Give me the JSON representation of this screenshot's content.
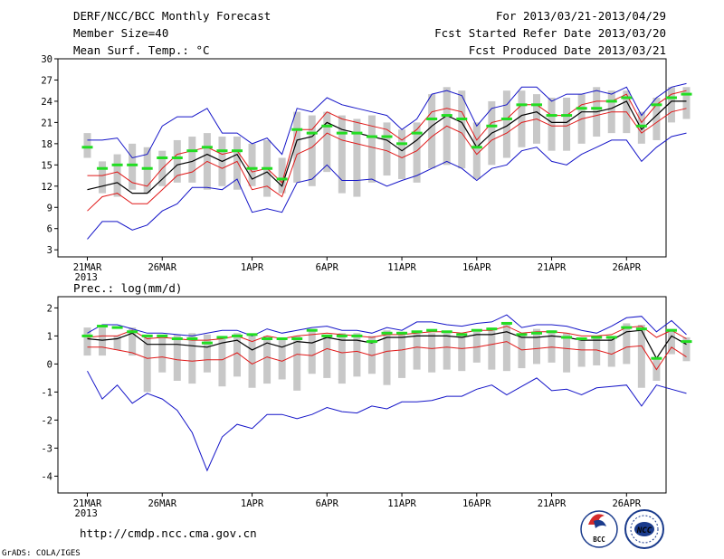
{
  "header": {
    "title": "DERF/NCC/BCC Monthly Forecast",
    "member_size": "Member Size=40",
    "variable": "Mean Surf. Temp.: °C",
    "period": "For 2013/03/21-2013/04/29",
    "started": "Fcst Started Refer Date 2013/03/20",
    "produced": "Fcst Produced Date 2013/03/21"
  },
  "footer": {
    "url": "http://cmdp.ncc.cma.gov.cn",
    "credit": "GrADS: COLA/IGES",
    "logo_left": "BCC",
    "logo_right": "NCC"
  },
  "legend_colors": {
    "max": "#1414c8",
    "min": "#1414c8",
    "upper": "#e01818",
    "lower": "#e01818",
    "mean": "#000000",
    "obs": "#22dd22",
    "spread": "#c8c8c8"
  },
  "chart_data": [
    {
      "type": "line",
      "name": "temp",
      "ylabel": "Mean Surf. Temp.: °C",
      "ylim": [
        2,
        30
      ],
      "yticks": [
        3,
        6,
        9,
        12,
        15,
        18,
        21,
        24,
        27,
        30
      ],
      "xticks": [
        {
          "day": 0,
          "label": "21MAR",
          "sub": "2013"
        },
        {
          "day": 5,
          "label": "26MAR"
        },
        {
          "day": 11,
          "label": "1APR"
        },
        {
          "day": 16,
          "label": "6APR"
        },
        {
          "day": 21,
          "label": "11APR"
        },
        {
          "day": 26,
          "label": "16APR"
        },
        {
          "day": 31,
          "label": "21APR"
        },
        {
          "day": 36,
          "label": "26APR"
        }
      ],
      "max": [
        18.5,
        18.5,
        18.8,
        16.0,
        16.5,
        20.5,
        21.8,
        21.8,
        23.0,
        19.5,
        19.5,
        18.0,
        18.8,
        16.5,
        23.0,
        22.5,
        24.5,
        23.5,
        23.0,
        22.5,
        22.0,
        20.0,
        21.5,
        25.0,
        25.5,
        24.8,
        20.5,
        23.0,
        23.5,
        26.0,
        26.0,
        24.0,
        25.0,
        25.0,
        25.5,
        25.0,
        26.0,
        22.0,
        24.5,
        26.0,
        26.5
      ],
      "upper": [
        13.5,
        13.5,
        14.0,
        12.5,
        12.0,
        14.5,
        16.5,
        17.0,
        17.5,
        16.5,
        17.0,
        14.0,
        14.5,
        12.5,
        20.0,
        20.0,
        22.5,
        21.5,
        21.0,
        20.5,
        20.0,
        18.5,
        20.0,
        22.5,
        23.0,
        22.5,
        18.5,
        21.0,
        21.5,
        23.5,
        23.5,
        22.0,
        22.0,
        23.5,
        24.0,
        24.0,
        25.0,
        21.0,
        23.5,
        25.0,
        25.5
      ],
      "mean": [
        11.5,
        12.0,
        12.5,
        11.0,
        11.0,
        13.0,
        15.0,
        15.5,
        16.5,
        15.5,
        16.5,
        13.0,
        14.0,
        12.0,
        18.5,
        19.0,
        21.0,
        20.0,
        19.5,
        19.0,
        18.5,
        17.0,
        18.5,
        20.5,
        22.0,
        21.0,
        17.5,
        19.5,
        20.5,
        22.0,
        22.5,
        21.0,
        21.0,
        22.5,
        22.5,
        23.0,
        24.0,
        20.0,
        22.0,
        24.0,
        24.0
      ],
      "lower": [
        8.5,
        10.5,
        11.0,
        9.5,
        9.5,
        11.5,
        13.5,
        14.0,
        15.5,
        14.5,
        15.5,
        11.5,
        12.0,
        10.5,
        16.5,
        17.5,
        19.5,
        18.5,
        18.0,
        17.5,
        17.0,
        16.0,
        17.0,
        19.0,
        20.5,
        19.5,
        16.5,
        18.5,
        19.5,
        21.0,
        21.5,
        20.5,
        20.5,
        21.5,
        22.0,
        22.5,
        22.5,
        19.5,
        21.0,
        22.5,
        23.0
      ],
      "min": [
        4.5,
        7.0,
        7.0,
        5.8,
        6.5,
        8.5,
        9.5,
        11.8,
        11.8,
        11.5,
        13.0,
        8.3,
        8.8,
        8.3,
        12.5,
        13.0,
        15.0,
        12.8,
        12.8,
        13.0,
        12.0,
        12.8,
        13.5,
        14.5,
        15.5,
        14.5,
        12.8,
        14.5,
        15.0,
        17.0,
        17.5,
        15.5,
        15.0,
        16.5,
        17.5,
        18.5,
        18.5,
        15.5,
        17.5,
        19.0,
        19.5
      ],
      "bar_top": [
        19.5,
        15.5,
        16.5,
        18.0,
        17.5,
        17.0,
        18.5,
        19.0,
        19.5,
        19.0,
        19.0,
        18.0,
        18.5,
        16.0,
        22.5,
        22.0,
        22.5,
        22.0,
        21.5,
        22.0,
        21.0,
        20.0,
        21.0,
        25.0,
        26.0,
        25.5,
        21.0,
        24.0,
        25.5,
        25.5,
        25.0,
        24.5,
        24.5,
        25.0,
        26.0,
        25.5,
        25.5,
        22.5,
        24.5,
        26.0,
        26.0
      ],
      "bar_bottom": [
        16.0,
        11.0,
        10.5,
        11.5,
        11.0,
        12.0,
        12.5,
        12.5,
        11.5,
        12.0,
        11.5,
        12.0,
        10.5,
        11.0,
        12.5,
        12.0,
        14.0,
        11.0,
        10.5,
        12.5,
        13.5,
        13.0,
        12.5,
        14.5,
        15.0,
        14.5,
        13.0,
        15.0,
        16.0,
        17.5,
        18.0,
        17.0,
        17.0,
        18.0,
        19.0,
        19.5,
        19.5,
        18.0,
        18.5,
        21.0,
        21.5
      ],
      "obs": [
        17.5,
        14.5,
        15.0,
        15.0,
        14.5,
        16.0,
        16.0,
        17.0,
        17.5,
        17.0,
        17.0,
        14.5,
        14.5,
        13.0,
        20.0,
        19.5,
        20.5,
        19.5,
        19.5,
        19.0,
        19.0,
        18.0,
        19.5,
        21.5,
        22.0,
        21.5,
        17.5,
        20.5,
        21.5,
        23.5,
        23.5,
        22.0,
        22.0,
        23.0,
        23.0,
        24.0,
        24.5,
        20.5,
        23.5,
        24.5,
        25.0
      ]
    },
    {
      "type": "line",
      "name": "precip",
      "ylabel": "Prec.: log(mm/d)",
      "ylim": [
        -4.6,
        2.4
      ],
      "yticks": [
        -4,
        -3,
        -2,
        -1,
        0,
        1,
        2
      ],
      "xticks": [
        {
          "day": 0,
          "label": "21MAR",
          "sub": "2013"
        },
        {
          "day": 5,
          "label": "26MAR"
        },
        {
          "day": 11,
          "label": "1APR"
        },
        {
          "day": 16,
          "label": "6APR"
        },
        {
          "day": 21,
          "label": "11APR"
        },
        {
          "day": 26,
          "label": "16APR"
        },
        {
          "day": 31,
          "label": "21APR"
        },
        {
          "day": 36,
          "label": "26APR"
        }
      ],
      "max": [
        1.1,
        1.4,
        1.4,
        1.25,
        1.1,
        1.1,
        1.05,
        1.0,
        1.1,
        1.2,
        1.2,
        1.0,
        1.25,
        1.1,
        1.2,
        1.3,
        1.35,
        1.2,
        1.2,
        1.1,
        1.3,
        1.2,
        1.5,
        1.5,
        1.4,
        1.35,
        1.45,
        1.5,
        1.75,
        1.3,
        1.4,
        1.4,
        1.35,
        1.2,
        1.1,
        1.35,
        1.65,
        1.7,
        1.15,
        1.55,
        1.05
      ],
      "upper": [
        0.95,
        1.0,
        1.0,
        1.2,
        0.9,
        0.95,
        0.9,
        0.85,
        0.85,
        0.9,
        1.0,
        0.8,
        1.0,
        0.9,
        1.0,
        1.05,
        1.1,
        1.05,
        1.0,
        0.95,
        1.05,
        1.05,
        1.1,
        1.15,
        1.15,
        1.1,
        1.2,
        1.2,
        1.35,
        1.1,
        1.15,
        1.15,
        1.1,
        1.0,
        1.0,
        1.05,
        1.3,
        1.35,
        0.95,
        1.2,
        0.9
      ],
      "mean": [
        0.9,
        0.85,
        0.9,
        1.1,
        0.7,
        0.7,
        0.7,
        0.65,
        0.6,
        0.75,
        0.85,
        0.5,
        0.75,
        0.6,
        0.8,
        0.75,
        0.95,
        0.85,
        0.85,
        0.75,
        0.95,
        0.95,
        1.0,
        1.0,
        1.0,
        0.95,
        1.05,
        1.05,
        1.15,
        0.95,
        0.95,
        1.0,
        0.95,
        0.85,
        0.85,
        0.85,
        1.15,
        1.2,
        0.2,
        1.0,
        0.7
      ],
      "lower": [
        0.6,
        0.6,
        0.5,
        0.4,
        0.2,
        0.25,
        0.15,
        0.1,
        0.15,
        0.15,
        0.4,
        0.0,
        0.25,
        0.1,
        0.35,
        0.3,
        0.55,
        0.4,
        0.45,
        0.3,
        0.45,
        0.5,
        0.6,
        0.55,
        0.6,
        0.55,
        0.6,
        0.7,
        0.8,
        0.5,
        0.55,
        0.6,
        0.55,
        0.5,
        0.5,
        0.35,
        0.6,
        0.65,
        -0.2,
        0.6,
        0.25
      ],
      "min": [
        -0.25,
        -1.25,
        -0.75,
        -1.4,
        -1.05,
        -1.25,
        -1.65,
        -2.45,
        -3.8,
        -2.6,
        -2.15,
        -2.3,
        -1.8,
        -1.8,
        -1.95,
        -1.8,
        -1.55,
        -1.7,
        -1.75,
        -1.5,
        -1.6,
        -1.35,
        -1.35,
        -1.3,
        -1.15,
        -1.15,
        -0.9,
        -0.75,
        -1.1,
        -0.8,
        -0.5,
        -0.95,
        -0.9,
        -1.1,
        -0.85,
        -0.8,
        -0.75,
        -1.5,
        -0.75,
        -0.9,
        -1.05
      ],
      "bar_top": [
        1.3,
        1.3,
        1.0,
        1.3,
        0.95,
        1.05,
        1.05,
        1.1,
        1.05,
        1.0,
        1.1,
        1.05,
        1.0,
        0.95,
        1.0,
        1.25,
        1.05,
        1.1,
        1.1,
        1.0,
        1.2,
        1.15,
        1.1,
        1.1,
        1.1,
        1.05,
        1.15,
        1.3,
        1.45,
        1.1,
        1.25,
        1.2,
        1.1,
        0.95,
        1.0,
        1.0,
        1.45,
        1.4,
        0.2,
        1.25,
        0.95
      ],
      "bar_bottom": [
        0.3,
        0.3,
        0.5,
        0.3,
        -1.0,
        -0.3,
        -0.6,
        -0.7,
        -0.3,
        -0.8,
        -0.45,
        -0.85,
        -0.7,
        -0.55,
        -0.95,
        -0.35,
        -0.5,
        -0.7,
        -0.45,
        -0.35,
        -0.75,
        -0.5,
        -0.2,
        -0.3,
        -0.2,
        -0.25,
        0.05,
        -0.2,
        -0.25,
        -0.15,
        0.0,
        0.05,
        -0.3,
        -0.1,
        -0.05,
        -0.1,
        0.0,
        -0.85,
        -0.6,
        0.35,
        0.1
      ],
      "obs": [
        1.0,
        1.35,
        1.3,
        1.15,
        1.0,
        1.0,
        0.9,
        0.9,
        0.75,
        0.95,
        1.0,
        1.05,
        0.9,
        0.9,
        0.9,
        1.2,
        1.0,
        1.0,
        1.0,
        0.8,
        1.1,
        1.1,
        1.15,
        1.2,
        1.15,
        1.05,
        1.2,
        1.25,
        1.45,
        1.05,
        1.1,
        1.15,
        0.95,
        0.9,
        0.95,
        0.95,
        1.3,
        1.25,
        0.2,
        1.2,
        0.8
      ]
    }
  ]
}
